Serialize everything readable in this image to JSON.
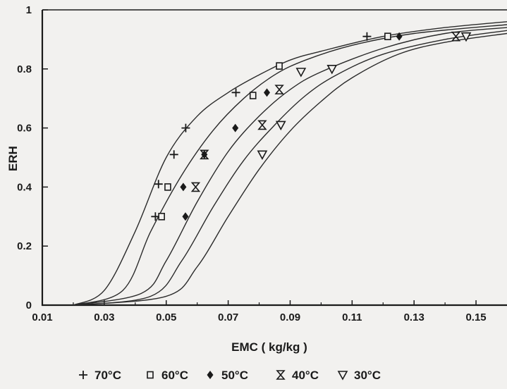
{
  "chart_data": {
    "type": "scatter",
    "xlabel": "EMC ( kg/kg )",
    "ylabel": "ERH",
    "xlim": [
      0.01,
      0.16
    ],
    "ylim": [
      0,
      1
    ],
    "x_ticks": [
      "0.01",
      "0.03",
      "0.05",
      "0.07",
      "0.09",
      "0.11",
      "0.13",
      "0.15"
    ],
    "y_ticks": [
      "0",
      "0.2",
      "0.4",
      "0.6",
      "0.8",
      "1"
    ],
    "grid": false,
    "legend_position": "bottom",
    "series": [
      {
        "name": "70°C",
        "marker": "plus",
        "points": [
          [
            0.0465,
            0.3
          ],
          [
            0.0475,
            0.41
          ],
          [
            0.0525,
            0.51
          ],
          [
            0.0563,
            0.6
          ],
          [
            0.0725,
            0.72
          ],
          [
            0.1148,
            0.91
          ]
        ],
        "curve": [
          [
            0.02,
            0
          ],
          [
            0.03,
            0.05
          ],
          [
            0.04,
            0.25
          ],
          [
            0.05,
            0.5
          ],
          [
            0.06,
            0.64
          ],
          [
            0.07,
            0.72
          ],
          [
            0.08,
            0.78
          ],
          [
            0.09,
            0.83
          ],
          [
            0.1,
            0.86
          ],
          [
            0.12,
            0.91
          ],
          [
            0.14,
            0.94
          ],
          [
            0.16,
            0.96
          ]
        ]
      },
      {
        "name": "60°C",
        "marker": "square",
        "points": [
          [
            0.0485,
            0.3
          ],
          [
            0.0505,
            0.4
          ],
          [
            0.078,
            0.71
          ],
          [
            0.0865,
            0.81
          ],
          [
            0.1215,
            0.91
          ]
        ],
        "curve": [
          [
            0.02,
            0
          ],
          [
            0.036,
            0.05
          ],
          [
            0.045,
            0.25
          ],
          [
            0.055,
            0.44
          ],
          [
            0.065,
            0.59
          ],
          [
            0.075,
            0.7
          ],
          [
            0.085,
            0.78
          ],
          [
            0.095,
            0.83
          ],
          [
            0.11,
            0.88
          ],
          [
            0.13,
            0.92
          ],
          [
            0.16,
            0.95
          ]
        ]
      },
      {
        "name": "50°C",
        "marker": "diamond",
        "points": [
          [
            0.0562,
            0.3
          ],
          [
            0.0555,
            0.4
          ],
          [
            0.0623,
            0.51
          ],
          [
            0.0723,
            0.6
          ],
          [
            0.0825,
            0.72
          ],
          [
            0.1252,
            0.91
          ]
        ],
        "curve": [
          [
            0.02,
            0
          ],
          [
            0.042,
            0.04
          ],
          [
            0.05,
            0.15
          ],
          [
            0.06,
            0.35
          ],
          [
            0.07,
            0.52
          ],
          [
            0.08,
            0.64
          ],
          [
            0.09,
            0.73
          ],
          [
            0.1,
            0.79
          ],
          [
            0.12,
            0.87
          ],
          [
            0.14,
            0.92
          ],
          [
            0.16,
            0.94
          ]
        ]
      },
      {
        "name": "40°C",
        "marker": "hourglass",
        "points": [
          [
            0.0595,
            0.4
          ],
          [
            0.0623,
            0.51
          ],
          [
            0.081,
            0.61
          ],
          [
            0.0865,
            0.73
          ],
          [
            0.1435,
            0.91
          ]
        ],
        "curve": [
          [
            0.02,
            0
          ],
          [
            0.045,
            0.03
          ],
          [
            0.055,
            0.15
          ],
          [
            0.065,
            0.33
          ],
          [
            0.075,
            0.49
          ],
          [
            0.085,
            0.61
          ],
          [
            0.095,
            0.71
          ],
          [
            0.105,
            0.78
          ],
          [
            0.12,
            0.85
          ],
          [
            0.14,
            0.9
          ],
          [
            0.16,
            0.93
          ]
        ]
      },
      {
        "name": "30°C",
        "marker": "triangle-down",
        "points": [
          [
            0.081,
            0.51
          ],
          [
            0.087,
            0.61
          ],
          [
            0.0935,
            0.79
          ],
          [
            0.1035,
            0.8
          ],
          [
            0.1468,
            0.91
          ]
        ],
        "curve": [
          [
            0.02,
            0
          ],
          [
            0.05,
            0.03
          ],
          [
            0.06,
            0.13
          ],
          [
            0.07,
            0.3
          ],
          [
            0.08,
            0.46
          ],
          [
            0.09,
            0.59
          ],
          [
            0.1,
            0.69
          ],
          [
            0.11,
            0.77
          ],
          [
            0.125,
            0.85
          ],
          [
            0.14,
            0.89
          ],
          [
            0.16,
            0.92
          ]
        ]
      }
    ]
  }
}
